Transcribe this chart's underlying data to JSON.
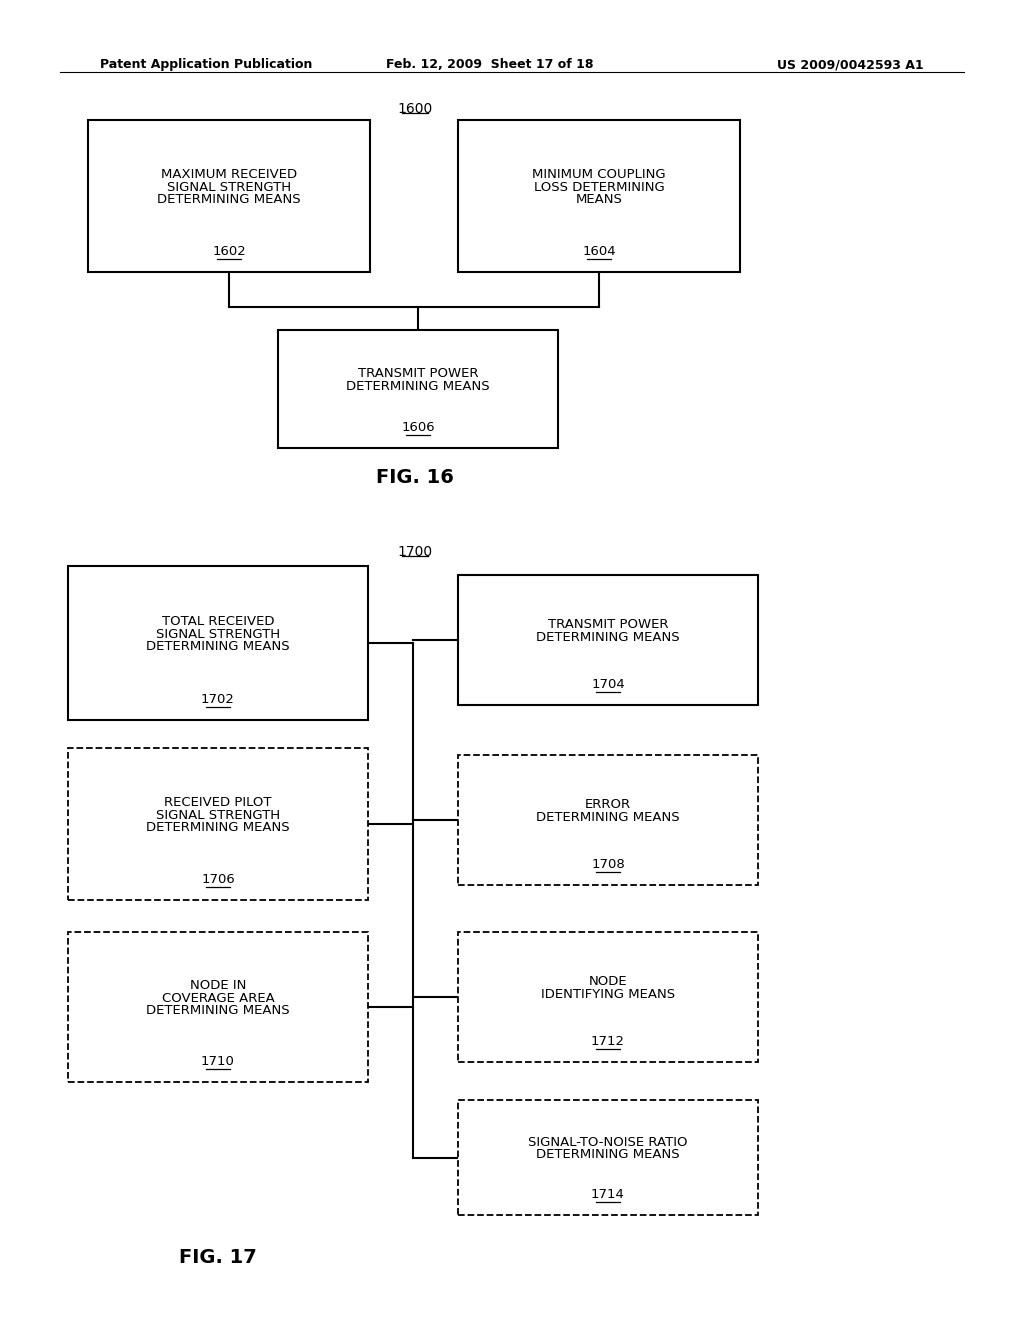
{
  "background_color": "#ffffff",
  "header_text_left": "Patent Application Publication",
  "header_text_mid": "Feb. 12, 2009  Sheet 17 of 18",
  "header_text_right": "US 2009/0042593 A1",
  "fig16_label": "1600",
  "fig16_caption": "FIG. 16",
  "fig17_label": "1700",
  "fig17_caption": "FIG. 17",
  "font_size_box": 9.5,
  "font_size_num": 9.5,
  "font_size_caption": 14,
  "font_size_label": 10,
  "font_size_header": 9
}
